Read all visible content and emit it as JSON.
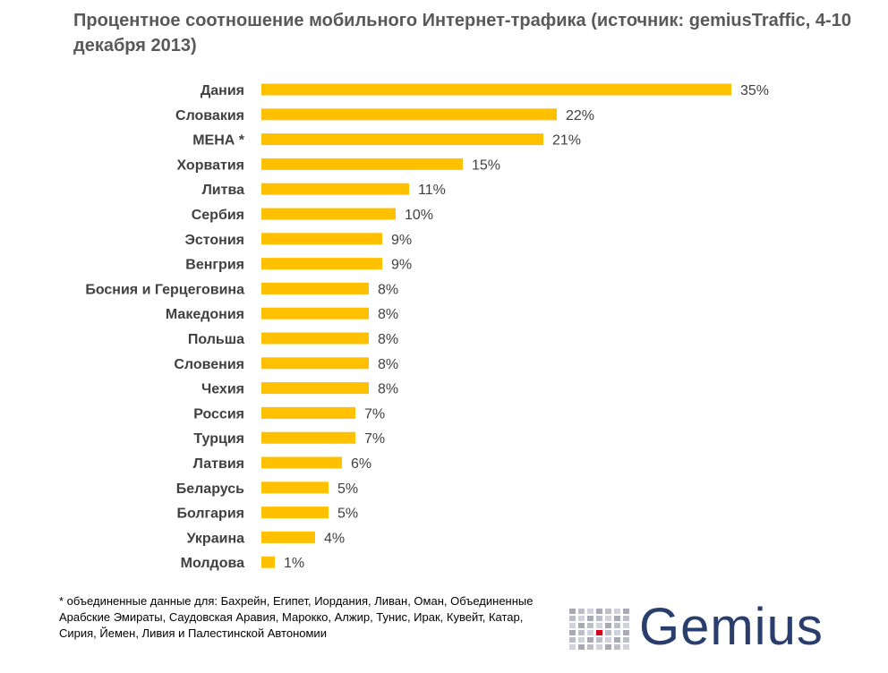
{
  "header": {
    "title_bold": "Процентное соотношение мобильного Интернет-трафика",
    "title_rest": " (источник: gemiusTraffic, 4-10 декабря 2013)"
  },
  "chart_data": {
    "type": "bar",
    "orientation": "horizontal",
    "title": "Процентное соотношение мобильного Интернет-трафика (источник: gemiusTraffic, 4-10 декабря 2013)",
    "categories": [
      "Дания",
      "Словакия",
      "МЕНА *",
      "Хорватия",
      "Литва",
      "Сербия",
      "Эстония",
      "Венгрия",
      "Босния и Герцеговина",
      "Македония",
      "Польша",
      "Словения",
      "Чехия",
      "Россия",
      "Турция",
      "Латвия",
      "Беларусь",
      "Болгария",
      "Украина",
      "Молдова"
    ],
    "values": [
      35,
      22,
      21,
      15,
      11,
      10,
      9,
      9,
      8,
      8,
      8,
      8,
      8,
      7,
      7,
      6,
      5,
      5,
      4,
      1
    ],
    "value_labels": [
      "35%",
      "22%",
      "21%",
      "15%",
      "11%",
      "10%",
      "9%",
      "9%",
      "8%",
      "8%",
      "8%",
      "8%",
      "8%",
      "7%",
      "7%",
      "6%",
      "5%",
      "5%",
      "4%",
      "1%"
    ],
    "xlabel": "",
    "ylabel": "",
    "xlim": [
      0,
      35
    ],
    "grid": false,
    "bar_color": "#FFC000"
  },
  "footnote": {
    "text": "* объединенные данные для: Бахрейн, Египет, Иордания, Ливан, Оман, Объединенные Арабские Эмираты, Саудовская Аравия, Марокко, Алжир, Тунис, Ирак, Кувейт, Катар, Сирия, Йемен, Ливия и Палестинской Автономии"
  },
  "logo": {
    "text": "Gemius",
    "color": "#2a3e6e",
    "accent_color": "#d9001b"
  }
}
